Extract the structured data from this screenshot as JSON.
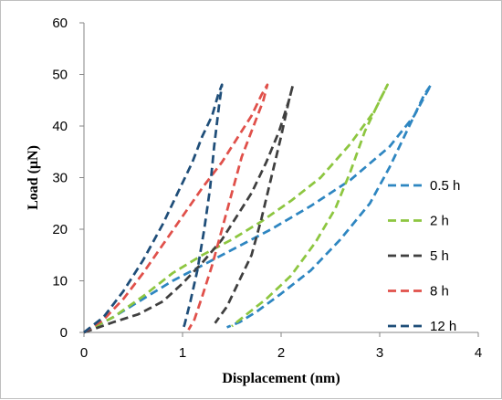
{
  "chart_data": {
    "type": "line",
    "title": "",
    "xlabel": "Displacement (nm)",
    "ylabel": "Load (μN)",
    "xlim": [
      0,
      4
    ],
    "ylim": [
      0,
      60
    ],
    "x_ticks": [
      "0",
      "1",
      "2",
      "3",
      "4"
    ],
    "y_ticks": [
      "0",
      "10",
      "20",
      "30",
      "40",
      "50",
      "60"
    ],
    "grid": false,
    "legend_position": "right",
    "line_style": "dashed",
    "series": [
      {
        "name": "0.5 h",
        "color": "#2E86C1",
        "points": [
          [
            0,
            0
          ],
          [
            0.3,
            3
          ],
          [
            0.6,
            6.5
          ],
          [
            0.9,
            10
          ],
          [
            1.2,
            13
          ],
          [
            1.55,
            16.5
          ],
          [
            1.9,
            20
          ],
          [
            2.3,
            24.5
          ],
          [
            2.7,
            29.5
          ],
          [
            3.1,
            36
          ],
          [
            3.35,
            42
          ],
          [
            3.52,
            48
          ],
          [
            3.45,
            46
          ],
          [
            3.3,
            40
          ],
          [
            3.1,
            32
          ],
          [
            2.9,
            25
          ],
          [
            2.6,
            18
          ],
          [
            2.3,
            12
          ],
          [
            2.0,
            7.5
          ],
          [
            1.75,
            4
          ],
          [
            1.58,
            2
          ],
          [
            1.45,
            1
          ]
        ]
      },
      {
        "name": "2 h",
        "color": "#8DC640",
        "points": [
          [
            0,
            0
          ],
          [
            0.3,
            3
          ],
          [
            0.6,
            7
          ],
          [
            0.9,
            11.5
          ],
          [
            1.2,
            15
          ],
          [
            1.5,
            18
          ],
          [
            1.8,
            21.5
          ],
          [
            2.1,
            25.5
          ],
          [
            2.4,
            30
          ],
          [
            2.7,
            36.5
          ],
          [
            2.95,
            43
          ],
          [
            3.08,
            48
          ],
          [
            3.0,
            45
          ],
          [
            2.85,
            39
          ],
          [
            2.7,
            31
          ],
          [
            2.55,
            24
          ],
          [
            2.35,
            17.5
          ],
          [
            2.1,
            11
          ],
          [
            1.85,
            6.5
          ],
          [
            1.65,
            3.5
          ],
          [
            1.5,
            1.2
          ]
        ]
      },
      {
        "name": "5 h",
        "color": "#3F3F3F",
        "points": [
          [
            0,
            0
          ],
          [
            0.3,
            2
          ],
          [
            0.55,
            3.5
          ],
          [
            0.8,
            6
          ],
          [
            1.0,
            9.5
          ],
          [
            1.2,
            13.5
          ],
          [
            1.4,
            18
          ],
          [
            1.55,
            22.5
          ],
          [
            1.7,
            27
          ],
          [
            1.85,
            33
          ],
          [
            1.98,
            39
          ],
          [
            2.08,
            45
          ],
          [
            2.12,
            48
          ],
          [
            2.08,
            45
          ],
          [
            2.0,
            38
          ],
          [
            1.9,
            30
          ],
          [
            1.8,
            22
          ],
          [
            1.7,
            15
          ],
          [
            1.55,
            9
          ],
          [
            1.45,
            5
          ],
          [
            1.33,
            1.8
          ]
        ]
      },
      {
        "name": "8 h",
        "color": "#E0504A",
        "points": [
          [
            0,
            0
          ],
          [
            0.2,
            2.5
          ],
          [
            0.4,
            6.5
          ],
          [
            0.6,
            11.5
          ],
          [
            0.8,
            17
          ],
          [
            1.0,
            22.5
          ],
          [
            1.2,
            28
          ],
          [
            1.4,
            33
          ],
          [
            1.55,
            37.5
          ],
          [
            1.7,
            42
          ],
          [
            1.8,
            46
          ],
          [
            1.86,
            48
          ],
          [
            1.82,
            45
          ],
          [
            1.72,
            40
          ],
          [
            1.6,
            34
          ],
          [
            1.5,
            27
          ],
          [
            1.4,
            20
          ],
          [
            1.3,
            13
          ],
          [
            1.2,
            7
          ],
          [
            1.12,
            2.5
          ],
          [
            1.06,
            0.5
          ]
        ]
      },
      {
        "name": "12 h",
        "color": "#1F4E79",
        "points": [
          [
            0,
            0
          ],
          [
            0.2,
            3
          ],
          [
            0.4,
            8
          ],
          [
            0.6,
            14
          ],
          [
            0.8,
            21
          ],
          [
            0.95,
            27
          ],
          [
            1.1,
            33
          ],
          [
            1.2,
            38
          ],
          [
            1.3,
            42
          ],
          [
            1.36,
            46
          ],
          [
            1.4,
            48
          ],
          [
            1.37,
            44
          ],
          [
            1.32,
            36
          ],
          [
            1.28,
            28
          ],
          [
            1.22,
            20
          ],
          [
            1.15,
            12
          ],
          [
            1.08,
            6
          ],
          [
            1.02,
            1.5
          ],
          [
            1.0,
            0.5
          ]
        ]
      }
    ]
  }
}
